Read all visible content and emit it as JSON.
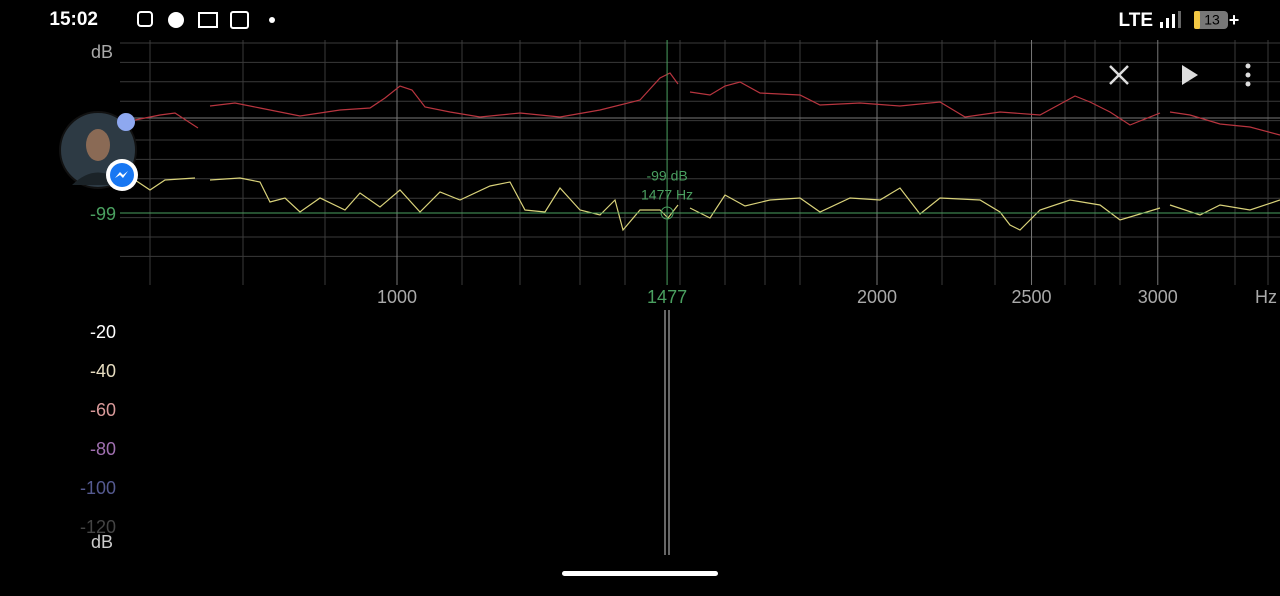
{
  "status_bar": {
    "time": "15:02",
    "network": "LTE",
    "battery": "13"
  },
  "spectrum": {
    "y_unit": "dB",
    "x_unit": "Hz",
    "x_ticks": [
      1000,
      2000,
      2500,
      3000
    ],
    "cursor": {
      "db": -99,
      "hz": 1477,
      "db_label": "-99 dB",
      "hz_label": "1477 Hz"
    }
  },
  "level_scale": {
    "labels": [
      "-20",
      "-40",
      "-60",
      "-80",
      "-100",
      "-120"
    ],
    "unit": "dB"
  }
}
